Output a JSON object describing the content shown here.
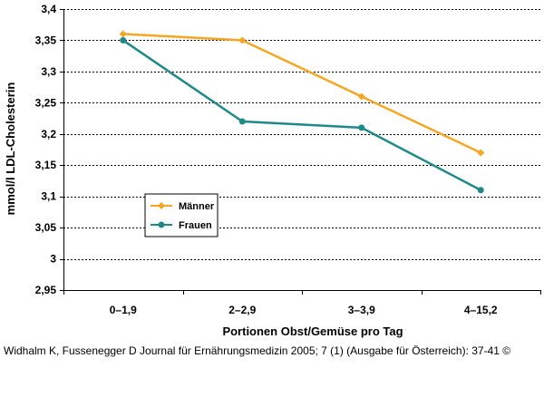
{
  "chart_data": {
    "type": "line",
    "categories": [
      "0–1,9",
      "2–2,9",
      "3–3,9",
      "4–15,2"
    ],
    "series": [
      {
        "name": "Männer",
        "color": "#f5a623",
        "marker": "diamond",
        "values": [
          3.36,
          3.35,
          3.26,
          3.17
        ]
      },
      {
        "name": "Frauen",
        "color": "#1e8a87",
        "marker": "circle",
        "values": [
          3.35,
          3.22,
          3.21,
          3.11
        ]
      }
    ],
    "xlabel": "Portionen Obst/Gemüse pro Tag",
    "ylabel": "mmol/l LDL-Cholesterin",
    "ylim": [
      2.95,
      3.4
    ],
    "yticks": [
      2.95,
      3.0,
      3.05,
      3.1,
      3.15,
      3.2,
      3.25,
      3.3,
      3.35,
      3.4
    ],
    "ytick_labels": [
      "2,95",
      "3",
      "3,05",
      "3,1",
      "3,15",
      "3,2",
      "3,25",
      "3,3",
      "3,35",
      "3,4"
    ],
    "grid": "horizontal dotted",
    "legend_position": "left-center"
  },
  "credit": "Widhalm K, Fussenegger D Journal für Ernährungsmedizin 2005; 7 (1) (Ausgabe für Österreich): 37-41 ©"
}
